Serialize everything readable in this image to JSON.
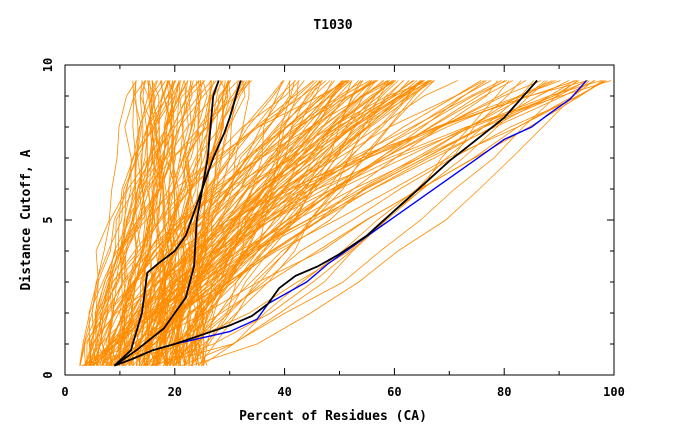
{
  "chart_data": {
    "type": "line",
    "title": "T1030",
    "xlabel": "Percent of Residues (CA)",
    "ylabel": "Distance Cutoff, A",
    "xlim": [
      0,
      100
    ],
    "ylim": [
      0,
      10
    ],
    "x_ticks": [
      "0",
      "20",
      "40",
      "60",
      "80",
      "100"
    ],
    "y_ticks": [
      "0",
      "5",
      "10"
    ],
    "grid": false,
    "legend": "none",
    "colors": {
      "background_models": "#ff8c00",
      "highlight_black": "#000000",
      "highlight_blue": "#0000ff"
    },
    "series": [
      {
        "color": "#0000ff",
        "x": [
          9,
          12,
          16,
          20,
          25,
          30,
          35,
          37,
          40,
          44,
          48,
          52,
          56,
          60,
          64,
          68,
          72,
          76,
          80,
          85,
          88,
          92,
          95
        ],
        "y": [
          0.3,
          0.5,
          0.8,
          1.0,
          1.2,
          1.4,
          1.8,
          2.3,
          2.6,
          3.0,
          3.6,
          4.1,
          4.6,
          5.1,
          5.6,
          6.1,
          6.6,
          7.1,
          7.6,
          8.0,
          8.4,
          8.9,
          9.5
        ]
      },
      {
        "color": "#000000",
        "x": [
          9,
          12,
          16,
          20,
          25,
          30,
          34,
          37,
          39,
          42,
          46,
          50,
          55,
          60,
          65,
          70,
          75,
          80,
          83,
          86
        ],
        "y": [
          0.3,
          0.5,
          0.8,
          1.0,
          1.3,
          1.6,
          1.9,
          2.3,
          2.8,
          3.2,
          3.5,
          3.9,
          4.5,
          5.3,
          6.1,
          6.9,
          7.6,
          8.3,
          8.9,
          9.5
        ]
      },
      {
        "color": "#000000",
        "x": [
          9,
          12,
          14,
          15,
          17,
          20,
          22,
          23,
          25,
          27,
          29,
          30,
          31,
          31.5,
          32
        ],
        "y": [
          0.3,
          0.8,
          2.0,
          3.3,
          3.6,
          4.0,
          4.5,
          5.0,
          6.0,
          7.0,
          7.8,
          8.3,
          8.9,
          9.2,
          9.5
        ]
      },
      {
        "color": "#000000",
        "x": [
          9,
          13,
          18,
          22,
          23.5,
          24,
          25,
          26,
          26.5,
          27,
          28
        ],
        "y": [
          0.3,
          0.8,
          1.5,
          2.5,
          3.5,
          5.0,
          6.0,
          7.0,
          8.0,
          9.0,
          9.5
        ]
      }
    ]
  }
}
